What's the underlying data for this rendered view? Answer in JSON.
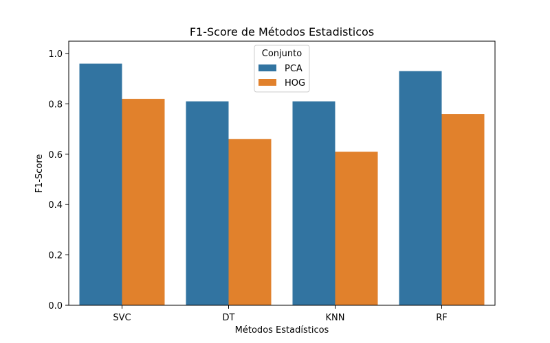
{
  "chart_data": {
    "type": "bar",
    "title": "F1-Score de Métodos Estadisticos",
    "xlabel": "Métodos Estadísticos",
    "ylabel": "F1-Score",
    "categories": [
      "SVC",
      "DT",
      "KNN",
      "RF"
    ],
    "series": [
      {
        "name": "PCA",
        "values": [
          0.96,
          0.81,
          0.81,
          0.93
        ],
        "color": "#3274a1"
      },
      {
        "name": "HOG",
        "values": [
          0.82,
          0.66,
          0.61,
          0.76
        ],
        "color": "#e1812c"
      }
    ],
    "ylim": [
      0,
      1.0
    ],
    "yticks": [
      0.0,
      0.2,
      0.4,
      0.6,
      0.8,
      1.0
    ],
    "ytick_labels": [
      "0.0",
      "0.2",
      "0.4",
      "0.6",
      "0.8",
      "1.0"
    ],
    "grid": false,
    "legend": {
      "title": "Conjunto",
      "placement": "top-center"
    }
  }
}
